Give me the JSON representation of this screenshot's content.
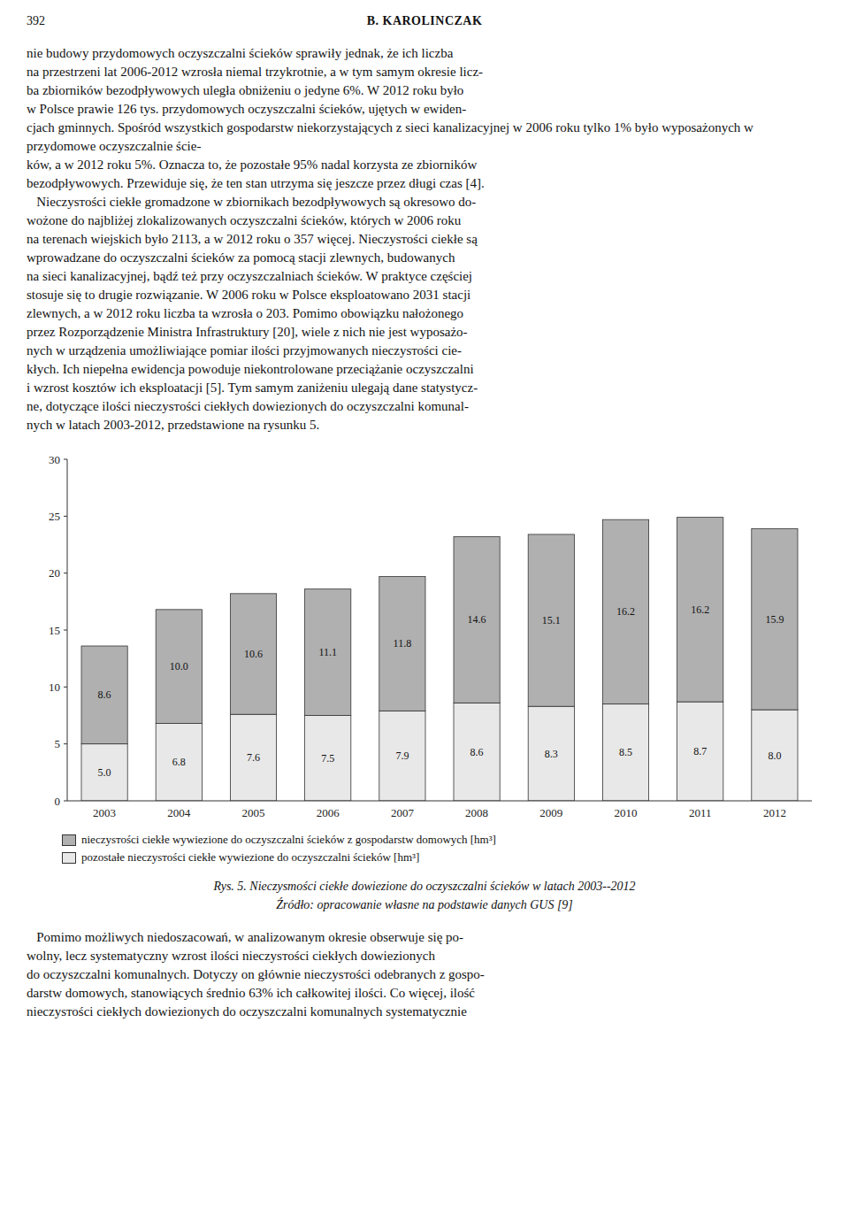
{
  "page": {
    "page_number": "392",
    "header": "B. KAROLINCZAK",
    "text_above": [
      "nie budowy przydomowych oczyszczalni ścieków sprawiły jednak, że ich liczba",
      "na przestrzeni lat 2006-2012 wzrosła niemal trzykrotnie, a w tym samym okresie licz-",
      "ba zbiorników bezodpływowych uległa obniżeniu o jedyne 6%. W 2012 roku było",
      "w Polsce prawie 126 tys. przydomowych oczyszczalni ścieków, ujętych w ewiden-",
      "cjach gminnych. Spośród wszystkich gospodarstw niekorzystających z sieci kanalizacyjnej w 2006 roku tylko 1% było wyposażonych w przydomowe oczyszczalnie ście-",
      "ków, a w 2012 roku 5%. Oznacza to, że pozostałe 95% nadal korzysta ze zbiorników",
      "bezodpływowych. Przewiduje się, że ten stan utrzyma się jeszcze przez długi czas [4].",
      "   Nieczysтоści ciekłe gromadzone w zbiornikach bezodpływowych są okresowo do-",
      "wożone do najbliżej zlokalizowanych oczyszczalni ścieków, których w 2006 roku",
      "na terenach wiejskich było 2113, a w 2012 roku o 357 więcej. Nieczysтоści ciekłe są",
      "wprowadzane do oczyszczalni ścieków za pomocą stacji zlewnych, budowanych",
      "na sieci kanalizacyjnej, bądź też przy oczyszczalniach ścieków. W praktyce częściej",
      "stosuje się to drugie rozwiązanie. W 2006 roku w Polsce eksploatowano 2031 stacji",
      "zlewnych, a w 2012 roku liczba ta wzrosła o 203. Pomimo obowiązku nałożonego",
      "przez Rozporządzenie Ministra Infrastruktury [20], wiele z nich nie jest wyposażo-",
      "nych w urządzenia umożliwiające pomiar ilości przyjmowanych nieczysтоści cie-",
      "kłych. Ich niepełna ewidencja powoduje niekontrolowane przeciążanie oczyszczalni",
      "i wzrost kosztów ich eksploatacji [5]. Tym samym zaniżeniu ulegają dane statystycz-",
      "ne, dotyczące ilości nieczysтоści ciekłych dowiezionych do oczyszczalni komunal-",
      "nych w latach 2003-2012, przedstawione na rysunku 5."
    ],
    "text_below": [
      "   Pomimo możliwych niedoszacowań, w analizowanym okresie obserwuje się po-",
      "wolny, lecz systematyczny wzrost ilości nieczysтоści ciekłych dowiezionych",
      "do oczyszczalni komunalnych. Dotyczy on głównie nieczysтоści odebranych z gospo-",
      "darstw domowych, stanowiących średnio 63% ich całkowitej ilości. Co więcej, ilość",
      "nieczysтоści ciekłych dowiezionych do oczyszczalni komunalnych systematycznie"
    ]
  },
  "chart_data": {
    "type": "bar",
    "stacked": true,
    "data_labels": true,
    "grid": false,
    "title": "Rys. 5. Nieczysтоści ciekłe dowiezione do oczyszczalni ścieków w latach 2003--2012",
    "subtitle": "Źródło: opracowanie własne na podstawie danych GUS [9]",
    "categories": [
      "2003",
      "2004",
      "2005",
      "2006",
      "2007",
      "2008",
      "2009",
      "2010",
      "2011",
      "2012"
    ],
    "series": [
      {
        "name": "pozostałe nieczysтоści ciekłe wywiezione do oczyszczalni ścieków [hm³]",
        "color": "#e8e8e8",
        "values": [
          5.0,
          6.8,
          7.6,
          7.5,
          7.9,
          8.6,
          8.3,
          8.5,
          8.7,
          8.0
        ],
        "value_labels": [
          "5.0",
          "6.8",
          "7.6",
          "7.5",
          "7.9",
          "8.6",
          "8.3",
          "8.5",
          "8.7",
          "8.0"
        ]
      },
      {
        "name": "nieczysтоści ciekłe wywiezione do oczyszczalni ścieków z gospodarstw domowych [hm³]",
        "color": "#b0b0b0",
        "values": [
          8.6,
          10.0,
          10.6,
          11.1,
          11.8,
          14.6,
          15.1,
          16.2,
          16.2,
          15.9
        ],
        "value_labels": [
          "8.6",
          "10.0",
          "10.6",
          "11.1",
          "11.8",
          "14.6",
          "15.1",
          "16.2",
          "16.2",
          "15.9"
        ]
      }
    ],
    "ylim": [
      0,
      30
    ],
    "yticks": [
      0,
      5,
      10,
      15,
      20,
      25,
      30
    ]
  }
}
